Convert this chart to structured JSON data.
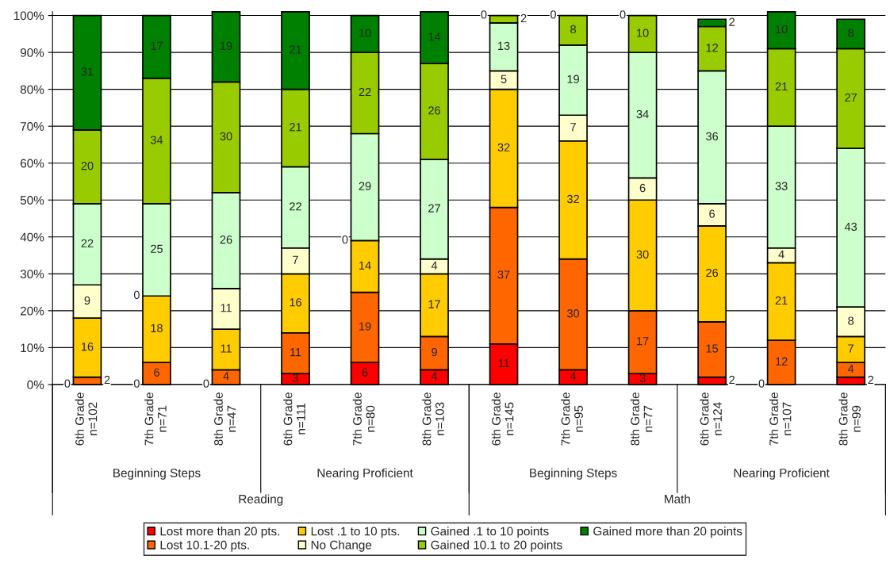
{
  "chart_data": {
    "type": "bar",
    "stacked": true,
    "categories": [
      "6th Grade\nn=102",
      "7th Grade\nn=71",
      "8th Grade\nn=47",
      "6th Grade\nn=111",
      "7th Grade\nn=80",
      "8th Grade\nn=103",
      "6th Grade\nn=145",
      "7th Grade\nn=95",
      "8th Grade\nn=77",
      "6th Grade\nn=124",
      "7th Grade\nn=107",
      "8th Grade\nn=99"
    ],
    "series": [
      {
        "name": "Lost more than 20 pts.",
        "color": "#ff0000",
        "values": [
          0,
          0,
          0,
          3,
          6,
          4,
          11,
          4,
          3,
          2,
          0,
          2
        ],
        "value_labels": [
          null,
          null,
          null,
          "3",
          "6",
          "4",
          "11",
          "4",
          "3",
          "2",
          null,
          "2"
        ]
      },
      {
        "name": "Lost 10.1-20 pts.",
        "color": "#ff6600",
        "values": [
          2,
          6,
          4,
          11,
          19,
          9,
          37,
          30,
          17,
          15,
          12,
          4
        ],
        "value_labels": [
          "2",
          "6",
          "4",
          "11",
          "19",
          "9",
          "37",
          "30",
          "17",
          "15",
          "12",
          "4"
        ]
      },
      {
        "name": "Lost .1 to 10 pts.",
        "color": "#ffcc00",
        "values": [
          16,
          18,
          11,
          16,
          14,
          17,
          32,
          32,
          30,
          26,
          21,
          7
        ],
        "value_labels": [
          "16",
          "18",
          "11",
          "16",
          "14",
          "17",
          "32",
          "32",
          "30",
          "26",
          "21",
          "7"
        ]
      },
      {
        "name": "No Change",
        "color": "#ffffcc",
        "values": [
          9,
          0,
          11,
          7,
          0,
          4,
          5,
          7,
          6,
          6,
          4,
          8
        ],
        "value_labels": [
          "9",
          null,
          "11",
          "7",
          null,
          "4",
          "5",
          "7",
          "6",
          "6",
          "4",
          "8"
        ]
      },
      {
        "name": "Gained .1 to 10 points",
        "color": "#ccffcc",
        "values": [
          22,
          25,
          26,
          22,
          29,
          27,
          13,
          19,
          34,
          36,
          33,
          43
        ],
        "value_labels": [
          "22",
          "25",
          "26",
          "22",
          "29",
          "27",
          "13",
          "19",
          "34",
          "36",
          "33",
          "43"
        ]
      },
      {
        "name": "Gained 10.1 to 20 points",
        "color": "#99cc00",
        "values": [
          20,
          34,
          30,
          21,
          22,
          26,
          2,
          8,
          10,
          12,
          21,
          27
        ],
        "value_labels": [
          "20",
          "34",
          "30",
          "21",
          "22",
          "26",
          "2",
          "8",
          "10",
          "12",
          "21",
          "27"
        ]
      },
      {
        "name": "Gained more than 20 points",
        "color": "#008000",
        "values": [
          31,
          17,
          19,
          21,
          10,
          14,
          0,
          0,
          0,
          2,
          10,
          8
        ],
        "value_labels": [
          "31",
          "17",
          "19",
          "21",
          "10",
          "14",
          null,
          null,
          null,
          "2",
          "10",
          "8"
        ]
      }
    ],
    "annotations": [
      "Beginning Steps",
      "Nearing Proficient",
      "Beginning Steps",
      "Nearing Proficient",
      "Reading",
      "Math",
      {
        "text": "0",
        "x": "6th Grade\nn=102",
        "y": 0
      },
      {
        "text": "0",
        "x": "7th Grade\nn=71",
        "y": 0
      },
      {
        "text": "0",
        "x": "7th Grade\nn=71",
        "y": 24
      },
      {
        "text": "0",
        "x": "8th Grade\nn=47",
        "y": 0
      },
      {
        "text": "0",
        "x": "7th Grade\nn=80",
        "y": 39
      },
      {
        "text": "0",
        "x": "6th Grade\nn=145",
        "y": 100
      },
      {
        "text": "0",
        "x": "7th Grade\nn=95",
        "y": 100
      },
      {
        "text": "0",
        "x": "8th Grade\nn=77",
        "y": 100
      },
      {
        "text": "0",
        "x": "7th Grade\nn=107",
        "y": 0
      }
    ],
    "ylim": [
      0,
      101
    ],
    "yticks": [
      {
        "value": 0,
        "label": "0%"
      },
      {
        "value": 10,
        "label": "10%"
      },
      {
        "value": 20,
        "label": "20%"
      },
      {
        "value": 30,
        "label": "30%"
      },
      {
        "value": 40,
        "label": "40%"
      },
      {
        "value": 50,
        "label": "50%"
      },
      {
        "value": 60,
        "label": "60%"
      },
      {
        "value": 70,
        "label": "70%"
      },
      {
        "value": 80,
        "label": "80%"
      },
      {
        "value": 90,
        "label": "90%"
      },
      {
        "value": 100,
        "label": "100%"
      }
    ],
    "grid": "y",
    "legend": "bottom"
  }
}
